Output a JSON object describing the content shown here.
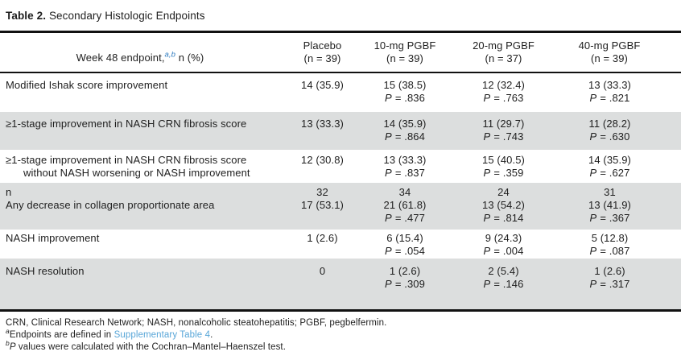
{
  "title": {
    "label": "Table 2.",
    "text": "Secondary Histologic Endpoints"
  },
  "p_label": "P",
  "colors": {
    "shaded_row": "#dcdede",
    "rule_black": "#111111",
    "superscript_blue": "#2f7cc0",
    "link_blue": "#58a6d8"
  },
  "header": {
    "endpoint_pre": "Week 48 endpoint,",
    "endpoint_sup": "a,b",
    "endpoint_post": " n (%)",
    "columns": [
      {
        "line1": "Placebo",
        "line2": "(n = 39)"
      },
      {
        "line1": "10-mg PGBF",
        "line2": "(n = 39)"
      },
      {
        "line1": "20-mg PGBF",
        "line2": "(n = 37)"
      },
      {
        "line1": "40-mg PGBF",
        "line2": "(n = 39)"
      }
    ]
  },
  "rows": [
    {
      "label1": "Modified Ishak score improvement",
      "cells": [
        {
          "v1": "14 (35.9)"
        },
        {
          "v1": "15 (38.5)",
          "p": "= .836"
        },
        {
          "v1": "12 (32.4)",
          "p": "= .763"
        },
        {
          "v1": "13 (33.3)",
          "p": "= .821"
        }
      ]
    },
    {
      "label1": "≥1-stage improvement in NASH CRN fibrosis score",
      "cells": [
        {
          "v1": "13 (33.3)"
        },
        {
          "v1": "14 (35.9)",
          "p": "= .864"
        },
        {
          "v1": "11 (29.7)",
          "p": "= .743"
        },
        {
          "v1": "11 (28.2)",
          "p": "= .630"
        }
      ]
    },
    {
      "label1": "≥1-stage improvement in NASH CRN fibrosis score",
      "label2": "without NASH worsening or NASH improvement",
      "cells": [
        {
          "v1": "12 (30.8)"
        },
        {
          "v1": "13 (33.3)",
          "p": "= .837"
        },
        {
          "v1": "15 (40.5)",
          "p": "= .359"
        },
        {
          "v1": "14 (35.9)",
          "p": "= .627"
        }
      ]
    },
    {
      "label1": "n",
      "label2": "Any decrease in collagen proportionate area",
      "cells": [
        {
          "v1": "32",
          "v2": "17 (53.1)"
        },
        {
          "v1": "34",
          "v2": "21 (61.8)",
          "p": "= .477"
        },
        {
          "v1": "24",
          "v2": "13 (54.2)",
          "p": "= .814"
        },
        {
          "v1": "31",
          "v2": "13 (41.9)",
          "p": "= .367"
        }
      ]
    },
    {
      "label1": "NASH improvement",
      "cells": [
        {
          "v1": "1 (2.6)"
        },
        {
          "v1": "6 (15.4)",
          "p": "= .054"
        },
        {
          "v1": "9 (24.3)",
          "p": "= .004"
        },
        {
          "v1": "5 (12.8)",
          "p": "= .087"
        }
      ]
    },
    {
      "label1": "NASH resolution",
      "cells": [
        {
          "v1": "0"
        },
        {
          "v1": "1 (2.6)",
          "p": "= .309"
        },
        {
          "v1": "2 (5.4)",
          "p": "= .146"
        },
        {
          "v1": "1 (2.6)",
          "p": "= .317"
        }
      ]
    }
  ],
  "footnotes": {
    "abbreviations": "CRN, Clinical Research Network; NASH, nonalcoholic steatohepatitis; PGBF, pegbelfermin.",
    "a_sup": "a",
    "a_pre": "Endpoints are defined in ",
    "a_link": "Supplementary Table 4",
    "a_post": ".",
    "b_sup": "b",
    "b_p": "P",
    "b_text": " values were calculated with the Cochran–Mantel–Haenszel test."
  }
}
